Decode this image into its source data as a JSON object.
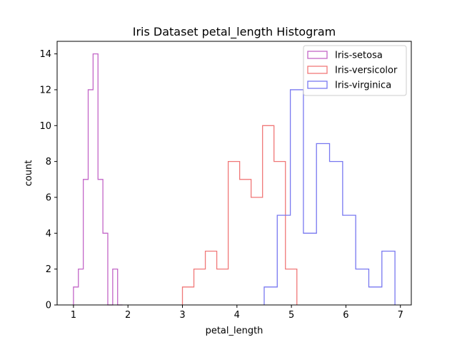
{
  "chart_data": {
    "type": "histogram",
    "title": "Iris Dataset petal_length Histogram",
    "xlabel": "petal_length",
    "ylabel": "count",
    "xlim": [
      0.7,
      7.2
    ],
    "ylim": [
      0,
      14.7
    ],
    "xticks": [
      "1",
      "2",
      "3",
      "4",
      "5",
      "6",
      "7"
    ],
    "yticks": [
      "0",
      "2",
      "4",
      "6",
      "8",
      "10",
      "12",
      "14"
    ],
    "grid": false,
    "legend_position": "top-right",
    "series": [
      {
        "name": "Iris-setosa",
        "color": "#c266c7",
        "edges": [
          1.0,
          1.09,
          1.18,
          1.27,
          1.36,
          1.45,
          1.54,
          1.63,
          1.72,
          1.81,
          1.9
        ],
        "counts": [
          1,
          2,
          7,
          12,
          14,
          7,
          4,
          0,
          2,
          0
        ]
      },
      {
        "name": "Iris-versicolor",
        "color": "#f07878",
        "edges": [
          3.0,
          3.21,
          3.42,
          3.63,
          3.84,
          4.05,
          4.26,
          4.47,
          4.68,
          4.89,
          5.1
        ],
        "counts": [
          1,
          2,
          3,
          2,
          8,
          7,
          6,
          10,
          8,
          2
        ]
      },
      {
        "name": "Iris-virginica",
        "color": "#7878f0",
        "edges": [
          4.5,
          4.74,
          4.98,
          5.22,
          5.46,
          5.7,
          5.94,
          6.18,
          6.42,
          6.66,
          6.9
        ],
        "counts": [
          1,
          5,
          12,
          4,
          9,
          8,
          5,
          2,
          1,
          3
        ]
      }
    ]
  }
}
